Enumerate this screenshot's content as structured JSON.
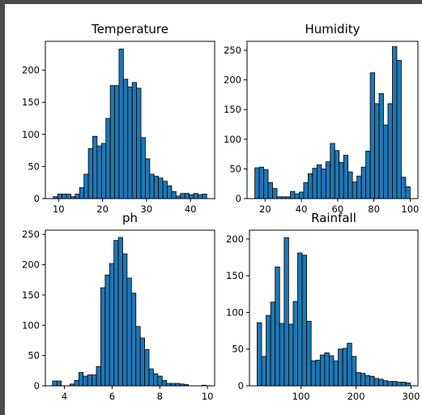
{
  "colors": {
    "bar_fill": "#1f77b4",
    "bar_edge": "#000000",
    "axes": "#000000",
    "frame": "#4a4a4a"
  },
  "chart_data": [
    {
      "type": "bar",
      "title": "Temperature",
      "xlabel": "",
      "ylabel": "",
      "grid": false,
      "x_edges_range": [
        8.8,
        43.7
      ],
      "xlim": [
        7.0,
        45.5
      ],
      "ylim": [
        0,
        245
      ],
      "xticks": [
        10,
        20,
        30,
        40
      ],
      "yticks": [
        0,
        50,
        100,
        150,
        200
      ],
      "values": [
        3,
        7,
        7,
        7,
        3,
        7,
        17,
        38,
        78,
        97,
        82,
        86,
        125,
        176,
        176,
        233,
        186,
        174,
        181,
        172,
        95,
        62,
        38,
        35,
        32,
        27,
        20,
        11,
        4,
        8,
        8,
        6,
        8,
        6,
        7
      ]
    },
    {
      "type": "bar",
      "title": "Humidity",
      "xlabel": "",
      "ylabel": "",
      "grid": false,
      "x_edges_range": [
        14.3,
        100.0
      ],
      "xlim": [
        10.0,
        104.3
      ],
      "ylim": [
        0,
        265
      ],
      "xticks": [
        20,
        40,
        60,
        80,
        100
      ],
      "yticks": [
        0,
        50,
        100,
        150,
        200,
        250
      ],
      "values": [
        52,
        53,
        49,
        27,
        17,
        3,
        3,
        3,
        12,
        8,
        11,
        27,
        42,
        51,
        57,
        50,
        62,
        93,
        81,
        61,
        73,
        45,
        28,
        38,
        53,
        80,
        212,
        160,
        177,
        124,
        160,
        256,
        233,
        36,
        20
      ]
    },
    {
      "type": "bar",
      "title": "ph",
      "xlabel": "",
      "ylabel": "",
      "grid": false,
      "x_edges_range": [
        3.5,
        9.94
      ],
      "xlim": [
        3.2,
        10.3
      ],
      "ylim": [
        0,
        257
      ],
      "xticks": [
        4,
        6,
        8,
        10
      ],
      "yticks": [
        0,
        50,
        100,
        150,
        200,
        250
      ],
      "values": [
        8,
        8,
        0,
        0,
        3,
        9,
        22,
        16,
        18,
        18,
        32,
        162,
        183,
        202,
        240,
        245,
        218,
        178,
        153,
        98,
        79,
        60,
        28,
        20,
        16,
        9,
        4,
        4,
        4,
        3,
        2,
        0,
        0,
        0,
        1
      ]
    },
    {
      "type": "bar",
      "title": "Rainfall",
      "xlabel": "",
      "ylabel": "",
      "grid": false,
      "x_edges_range": [
        20.2,
        298.6
      ],
      "xlim": [
        6.3,
        312.5
      ],
      "ylim": [
        0,
        212
      ],
      "xticks": [
        100,
        200,
        300
      ],
      "yticks": [
        0,
        50,
        100,
        150,
        200
      ],
      "values": [
        86,
        40,
        96,
        114,
        162,
        85,
        202,
        84,
        115,
        181,
        178,
        88,
        34,
        35,
        42,
        45,
        41,
        34,
        50,
        51,
        58,
        40,
        18,
        17,
        14,
        13,
        10,
        9,
        7,
        6,
        6,
        5,
        5,
        4
      ]
    }
  ]
}
